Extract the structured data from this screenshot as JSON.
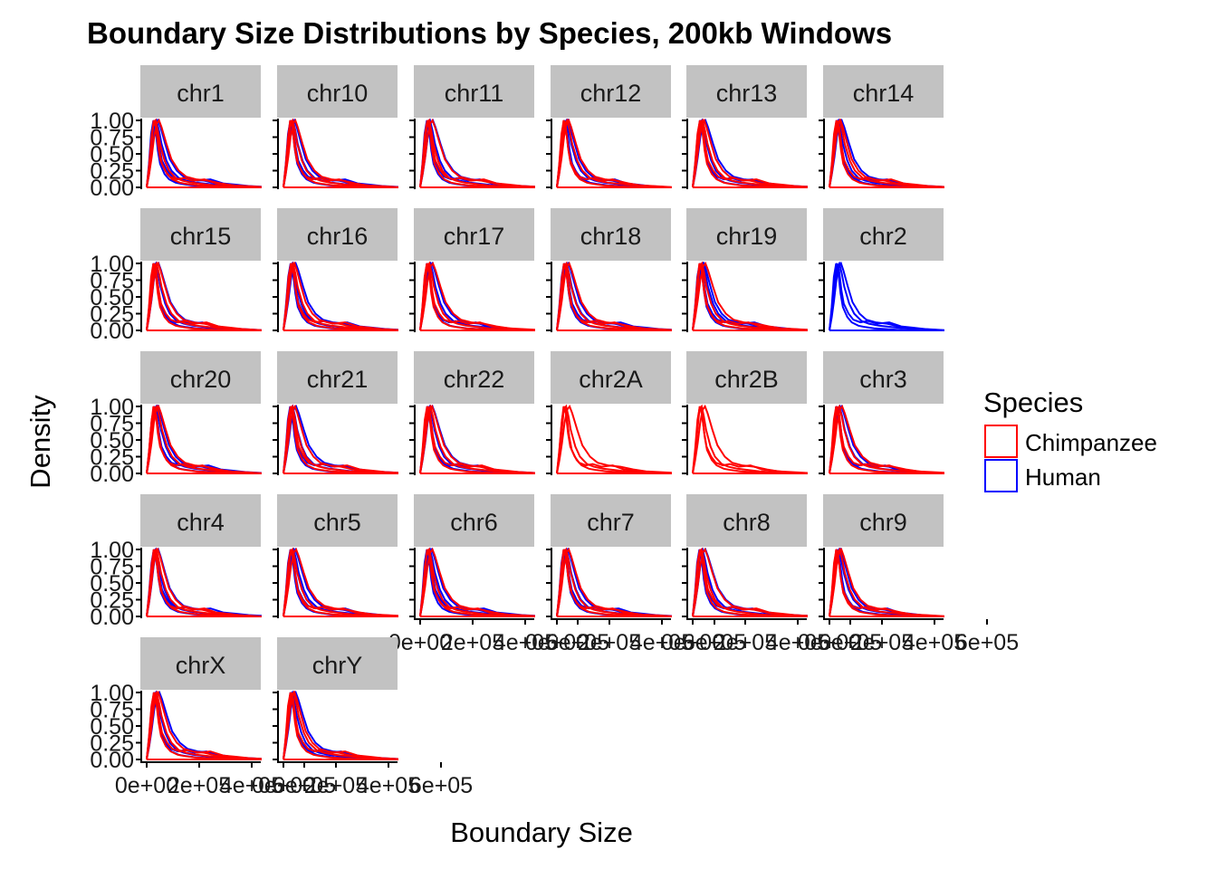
{
  "chart_data": {
    "type": "line",
    "title": "Boundary Size Distributions by Species, 200kb Windows",
    "xlabel": "Boundary Size",
    "ylabel": "Density",
    "ylim": [
      0,
      1
    ],
    "xlim": [
      0,
      600000
    ],
    "x_ticks": [
      "0e+00",
      "2e+05",
      "4e+05",
      "6e+05"
    ],
    "x_tick_positions": [
      0,
      200000,
      400000,
      600000
    ],
    "y_ticks": [
      "0.00",
      "0.25",
      "0.50",
      "0.75",
      "1.00"
    ],
    "y_tick_positions": [
      0,
      0.25,
      0.5,
      0.75,
      1
    ],
    "legend": {
      "title": "Species",
      "position": "right",
      "entries": [
        {
          "name": "Chimpanzee",
          "color": "#ff0000"
        },
        {
          "name": "Human",
          "color": "#0000ff"
        }
      ]
    },
    "panels": [
      {
        "label": "chr1",
        "species": [
          "Chimpanzee",
          "Human"
        ]
      },
      {
        "label": "chr10",
        "species": [
          "Chimpanzee",
          "Human"
        ]
      },
      {
        "label": "chr11",
        "species": [
          "Chimpanzee",
          "Human"
        ]
      },
      {
        "label": "chr12",
        "species": [
          "Chimpanzee",
          "Human"
        ]
      },
      {
        "label": "chr13",
        "species": [
          "Chimpanzee",
          "Human"
        ]
      },
      {
        "label": "chr14",
        "species": [
          "Chimpanzee",
          "Human"
        ]
      },
      {
        "label": "chr15",
        "species": [
          "Chimpanzee",
          "Human"
        ]
      },
      {
        "label": "chr16",
        "species": [
          "Chimpanzee",
          "Human"
        ]
      },
      {
        "label": "chr17",
        "species": [
          "Chimpanzee",
          "Human"
        ]
      },
      {
        "label": "chr18",
        "species": [
          "Chimpanzee",
          "Human"
        ]
      },
      {
        "label": "chr19",
        "species": [
          "Chimpanzee",
          "Human"
        ]
      },
      {
        "label": "chr2",
        "species": [
          "Human"
        ]
      },
      {
        "label": "chr20",
        "species": [
          "Chimpanzee",
          "Human"
        ]
      },
      {
        "label": "chr21",
        "species": [
          "Chimpanzee",
          "Human"
        ]
      },
      {
        "label": "chr22",
        "species": [
          "Chimpanzee",
          "Human"
        ]
      },
      {
        "label": "chr2A",
        "species": [
          "Chimpanzee"
        ]
      },
      {
        "label": "chr2B",
        "species": [
          "Chimpanzee"
        ]
      },
      {
        "label": "chr3",
        "species": [
          "Chimpanzee",
          "Human"
        ]
      },
      {
        "label": "chr4",
        "species": [
          "Chimpanzee",
          "Human"
        ]
      },
      {
        "label": "chr5",
        "species": [
          "Chimpanzee",
          "Human"
        ]
      },
      {
        "label": "chr6",
        "species": [
          "Chimpanzee",
          "Human"
        ]
      },
      {
        "label": "chr7",
        "species": [
          "Chimpanzee",
          "Human"
        ]
      },
      {
        "label": "chr8",
        "species": [
          "Chimpanzee",
          "Human"
        ]
      },
      {
        "label": "chr9",
        "species": [
          "Chimpanzee",
          "Human"
        ]
      },
      {
        "label": "chrX",
        "species": [
          "Chimpanzee",
          "Human"
        ]
      },
      {
        "label": "chrY",
        "species": [
          "Chimpanzee",
          "Human"
        ]
      }
    ],
    "curve_shape_x": [
      0,
      10000,
      20000,
      30000,
      40000,
      50000,
      60000,
      80000,
      100000,
      130000,
      160000,
      200000,
      250000,
      300000,
      350000,
      400000,
      450000,
      500000,
      550000,
      600000
    ],
    "curve_shapes": [
      {
        "name": "sharp",
        "y": [
          0,
          0.35,
          0.8,
          1.0,
          0.85,
          0.55,
          0.35,
          0.2,
          0.12,
          0.07,
          0.05,
          0.03,
          0.02,
          0.01,
          0,
          0,
          0,
          0,
          0,
          0
        ]
      },
      {
        "name": "mid",
        "y": [
          0,
          0.25,
          0.6,
          0.95,
          1.0,
          0.85,
          0.65,
          0.4,
          0.25,
          0.14,
          0.1,
          0.07,
          0.05,
          0.03,
          0.02,
          0.01,
          0,
          0,
          0,
          0
        ]
      },
      {
        "name": "wide",
        "y": [
          0,
          0.2,
          0.45,
          0.75,
          0.95,
          1.0,
          0.9,
          0.65,
          0.42,
          0.25,
          0.16,
          0.12,
          0.1,
          0.06,
          0.03,
          0.02,
          0.01,
          0,
          0,
          0
        ]
      },
      {
        "name": "bumpy",
        "y": [
          0,
          0.3,
          0.7,
          1.0,
          0.9,
          0.6,
          0.4,
          0.25,
          0.16,
          0.12,
          0.14,
          0.1,
          0.12,
          0.06,
          0.04,
          0.02,
          0.01,
          0,
          0,
          0
        ]
      }
    ]
  }
}
